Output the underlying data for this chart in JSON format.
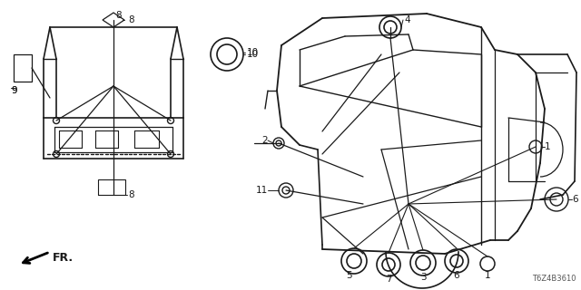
{
  "bg_color": "#ffffff",
  "part_number": "T6Z4B3610",
  "line_color": "#1a1a1a",
  "text_color": "#1a1a1a",
  "label_fontsize": 7.5,
  "partnumber_fontsize": 6.0,
  "fig_w": 6.4,
  "fig_h": 3.2,
  "dpi": 100
}
